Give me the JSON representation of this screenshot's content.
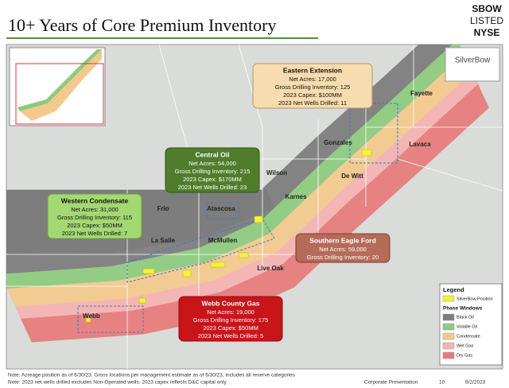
{
  "header": {
    "title": "10+ Years of Core Premium Inventory",
    "logo": [
      "SBOW",
      "LISTED",
      "NYSE"
    ]
  },
  "map": {
    "inset_logo": "SilverBow",
    "counties": [
      {
        "label": "Fayette"
      },
      {
        "label": "Gonzales"
      },
      {
        "label": "Lavaca"
      },
      {
        "label": "De Witt"
      },
      {
        "label": "Wilson"
      },
      {
        "label": "Karnes"
      },
      {
        "label": "Frio"
      },
      {
        "label": "Atascosa"
      },
      {
        "label": "La Salle"
      },
      {
        "label": "McMullen"
      },
      {
        "label": "Live Oak"
      },
      {
        "label": "Webb"
      }
    ]
  },
  "callouts": [
    {
      "title": "Eastern Extension",
      "lines": [
        "Net Acres: 17,000",
        "Gross Drilling Inventory: 125",
        "2023 Capex: $100MM",
        "2023 Net Wells Drilled: 11"
      ]
    },
    {
      "title": "Central Oil",
      "lines": [
        "Net Acres: 54,000",
        "Gross Drilling Inventory: 215",
        "2023 Capex: $170MM",
        "2023 Net Wells Drilled: 23"
      ]
    },
    {
      "title": "Western Condensate",
      "lines": [
        "Net Acres: 31,000",
        "Gross Drilling Inventory: 115",
        "2023 Capex: $50MM",
        "2023 Net Wells Drilled: 7"
      ]
    },
    {
      "title": "Southern Eagle Ford",
      "lines": [
        "Net Acres: 59,000",
        "Gross Drilling Inventory: 20"
      ]
    },
    {
      "title": "Webb County Gas",
      "lines": [
        "Net Acres: 19,000",
        "Gross Drilling Inventory: 175",
        "2023 Capex: $50MM",
        "2023 Net Wells Drilled: 5"
      ]
    }
  ],
  "legend": {
    "title": "Legend",
    "position": "SilverBow Position",
    "phase_title": "Phase Windows",
    "items": [
      {
        "label": "Black Oil",
        "color": "#7d7d7d"
      },
      {
        "label": "Volatile Oil",
        "color": "#8fca7f"
      },
      {
        "label": "Condensate",
        "color": "#f3c98e"
      },
      {
        "label": "Wet Gas",
        "color": "#f4b3b3"
      },
      {
        "label": "Dry Gas",
        "color": "#e77c7c"
      }
    ]
  },
  "footer": {
    "notes": [
      "Note: Acreage position as of 6/30/23. Gross locations per management estimate as of 6/30/23, includes all reserve categories",
      "Note: 2023 net wells drilled excludes Non-Operated wells. 2023 capex reflects D&C capital only"
    ],
    "source": "Corporate Presentation",
    "page": "10",
    "date": "8/2/2023"
  }
}
